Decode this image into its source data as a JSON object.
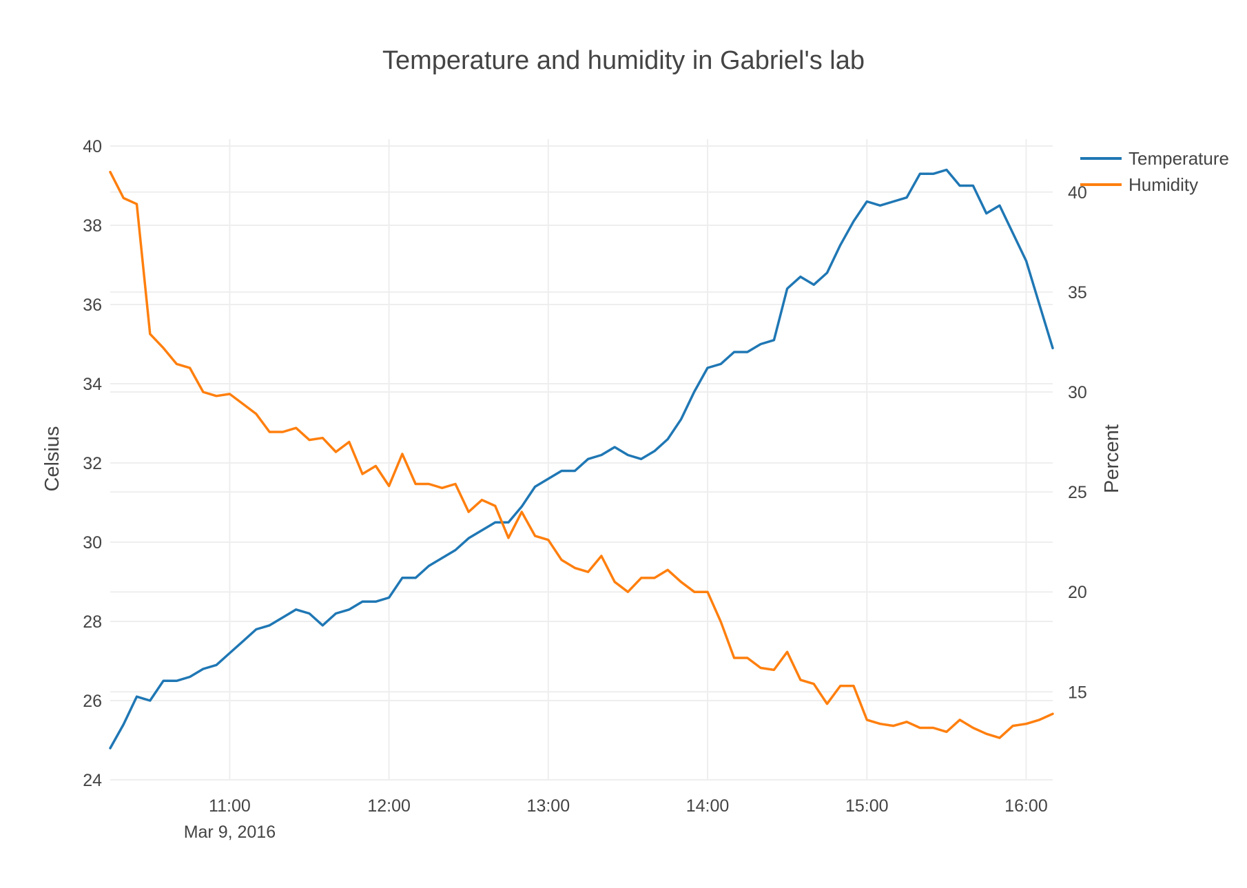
{
  "chart_data": {
    "type": "line",
    "title": "Temperature and humidity in Gabriel's lab",
    "x_range": [
      "2016-03-09T10:15",
      "2016-03-09T16:10"
    ],
    "x_ticks": [
      {
        "value": "2016-03-09T11:00",
        "label": "11:00",
        "sublabel": "Mar 9, 2016"
      },
      {
        "value": "2016-03-09T12:00",
        "label": "12:00",
        "sublabel": ""
      },
      {
        "value": "2016-03-09T13:00",
        "label": "13:00",
        "sublabel": ""
      },
      {
        "value": "2016-03-09T14:00",
        "label": "14:00",
        "sublabel": ""
      },
      {
        "value": "2016-03-09T15:00",
        "label": "15:00",
        "sublabel": ""
      },
      {
        "value": "2016-03-09T16:00",
        "label": "16:00",
        "sublabel": ""
      }
    ],
    "y_left": {
      "label": "Celsius",
      "range": [
        24,
        40
      ],
      "ticks": [
        24,
        26,
        28,
        30,
        32,
        34,
        36,
        38,
        40
      ],
      "tick_labels": [
        "24",
        "26",
        "28",
        "30",
        "32",
        "34",
        "36",
        "38",
        "40"
      ]
    },
    "y_right": {
      "label": "Percent",
      "range": [
        10.6,
        42.3
      ],
      "ticks": [
        15,
        20,
        25,
        30,
        35,
        40
      ],
      "tick_labels": [
        "15",
        "20",
        "25",
        "30",
        "35",
        "40"
      ]
    },
    "grid": true,
    "legend_position": "top-right",
    "x": [
      "2016-03-09T10:15",
      "2016-03-09T10:20",
      "2016-03-09T10:25",
      "2016-03-09T10:30",
      "2016-03-09T10:35",
      "2016-03-09T10:40",
      "2016-03-09T10:45",
      "2016-03-09T10:50",
      "2016-03-09T10:55",
      "2016-03-09T11:00",
      "2016-03-09T11:05",
      "2016-03-09T11:10",
      "2016-03-09T11:15",
      "2016-03-09T11:20",
      "2016-03-09T11:25",
      "2016-03-09T11:30",
      "2016-03-09T11:35",
      "2016-03-09T11:40",
      "2016-03-09T11:45",
      "2016-03-09T11:50",
      "2016-03-09T11:55",
      "2016-03-09T12:00",
      "2016-03-09T12:05",
      "2016-03-09T12:10",
      "2016-03-09T12:15",
      "2016-03-09T12:20",
      "2016-03-09T12:25",
      "2016-03-09T12:30",
      "2016-03-09T12:35",
      "2016-03-09T12:40",
      "2016-03-09T12:45",
      "2016-03-09T12:50",
      "2016-03-09T12:55",
      "2016-03-09T13:00",
      "2016-03-09T13:05",
      "2016-03-09T13:10",
      "2016-03-09T13:15",
      "2016-03-09T13:20",
      "2016-03-09T13:25",
      "2016-03-09T13:30",
      "2016-03-09T13:35",
      "2016-03-09T13:40",
      "2016-03-09T13:45",
      "2016-03-09T13:50",
      "2016-03-09T13:55",
      "2016-03-09T14:00",
      "2016-03-09T14:05",
      "2016-03-09T14:10",
      "2016-03-09T14:15",
      "2016-03-09T14:20",
      "2016-03-09T14:25",
      "2016-03-09T14:30",
      "2016-03-09T14:35",
      "2016-03-09T14:40",
      "2016-03-09T14:45",
      "2016-03-09T14:50",
      "2016-03-09T14:55",
      "2016-03-09T15:00",
      "2016-03-09T15:05",
      "2016-03-09T15:10",
      "2016-03-09T15:15",
      "2016-03-09T15:20",
      "2016-03-09T15:25",
      "2016-03-09T15:30",
      "2016-03-09T15:35",
      "2016-03-09T15:40",
      "2016-03-09T15:45",
      "2016-03-09T15:50",
      "2016-03-09T15:55",
      "2016-03-09T16:00",
      "2016-03-09T16:05",
      "2016-03-09T16:10"
    ],
    "series": [
      {
        "name": "Temperature",
        "axis": "left",
        "color": "#1f77b4",
        "values": [
          24.8,
          25.4,
          26.1,
          26.0,
          26.5,
          26.5,
          26.6,
          26.8,
          26.9,
          27.2,
          27.5,
          27.8,
          27.9,
          28.1,
          28.3,
          28.2,
          27.9,
          28.2,
          28.3,
          28.5,
          28.5,
          28.6,
          29.1,
          29.1,
          29.4,
          29.6,
          29.8,
          30.1,
          30.3,
          30.5,
          30.5,
          30.9,
          31.4,
          31.6,
          31.8,
          31.8,
          32.1,
          32.2,
          32.4,
          32.2,
          32.1,
          32.3,
          32.6,
          33.1,
          33.8,
          34.4,
          34.5,
          34.8,
          34.8,
          35.0,
          35.1,
          36.4,
          36.7,
          36.5,
          36.8,
          37.5,
          38.1,
          38.6,
          38.5,
          38.6,
          38.7,
          39.3,
          39.3,
          39.4,
          39.0,
          39.0,
          38.3,
          38.5,
          37.8,
          37.1,
          36.0,
          34.9
        ]
      },
      {
        "name": "Humidity",
        "axis": "right",
        "color": "#ff7f0e",
        "values": [
          41.0,
          39.7,
          39.4,
          32.9,
          32.2,
          31.4,
          31.2,
          30.0,
          29.8,
          29.9,
          29.4,
          28.9,
          28.0,
          28.0,
          28.2,
          27.6,
          27.7,
          27.0,
          27.5,
          25.9,
          26.3,
          25.3,
          26.9,
          25.4,
          25.4,
          25.2,
          25.4,
          24.0,
          24.6,
          24.3,
          22.7,
          24.0,
          22.8,
          22.6,
          21.6,
          21.2,
          21.0,
          21.8,
          20.5,
          20.0,
          20.7,
          20.7,
          21.1,
          20.5,
          20.0,
          20.0,
          18.5,
          16.7,
          16.7,
          16.2,
          16.1,
          17.0,
          15.6,
          15.4,
          14.4,
          15.3,
          15.3,
          13.6,
          13.4,
          13.3,
          13.5,
          13.2,
          13.2,
          13.0,
          13.6,
          13.2,
          12.9,
          12.7,
          13.3,
          13.4,
          13.6,
          13.9
        ]
      }
    ]
  }
}
